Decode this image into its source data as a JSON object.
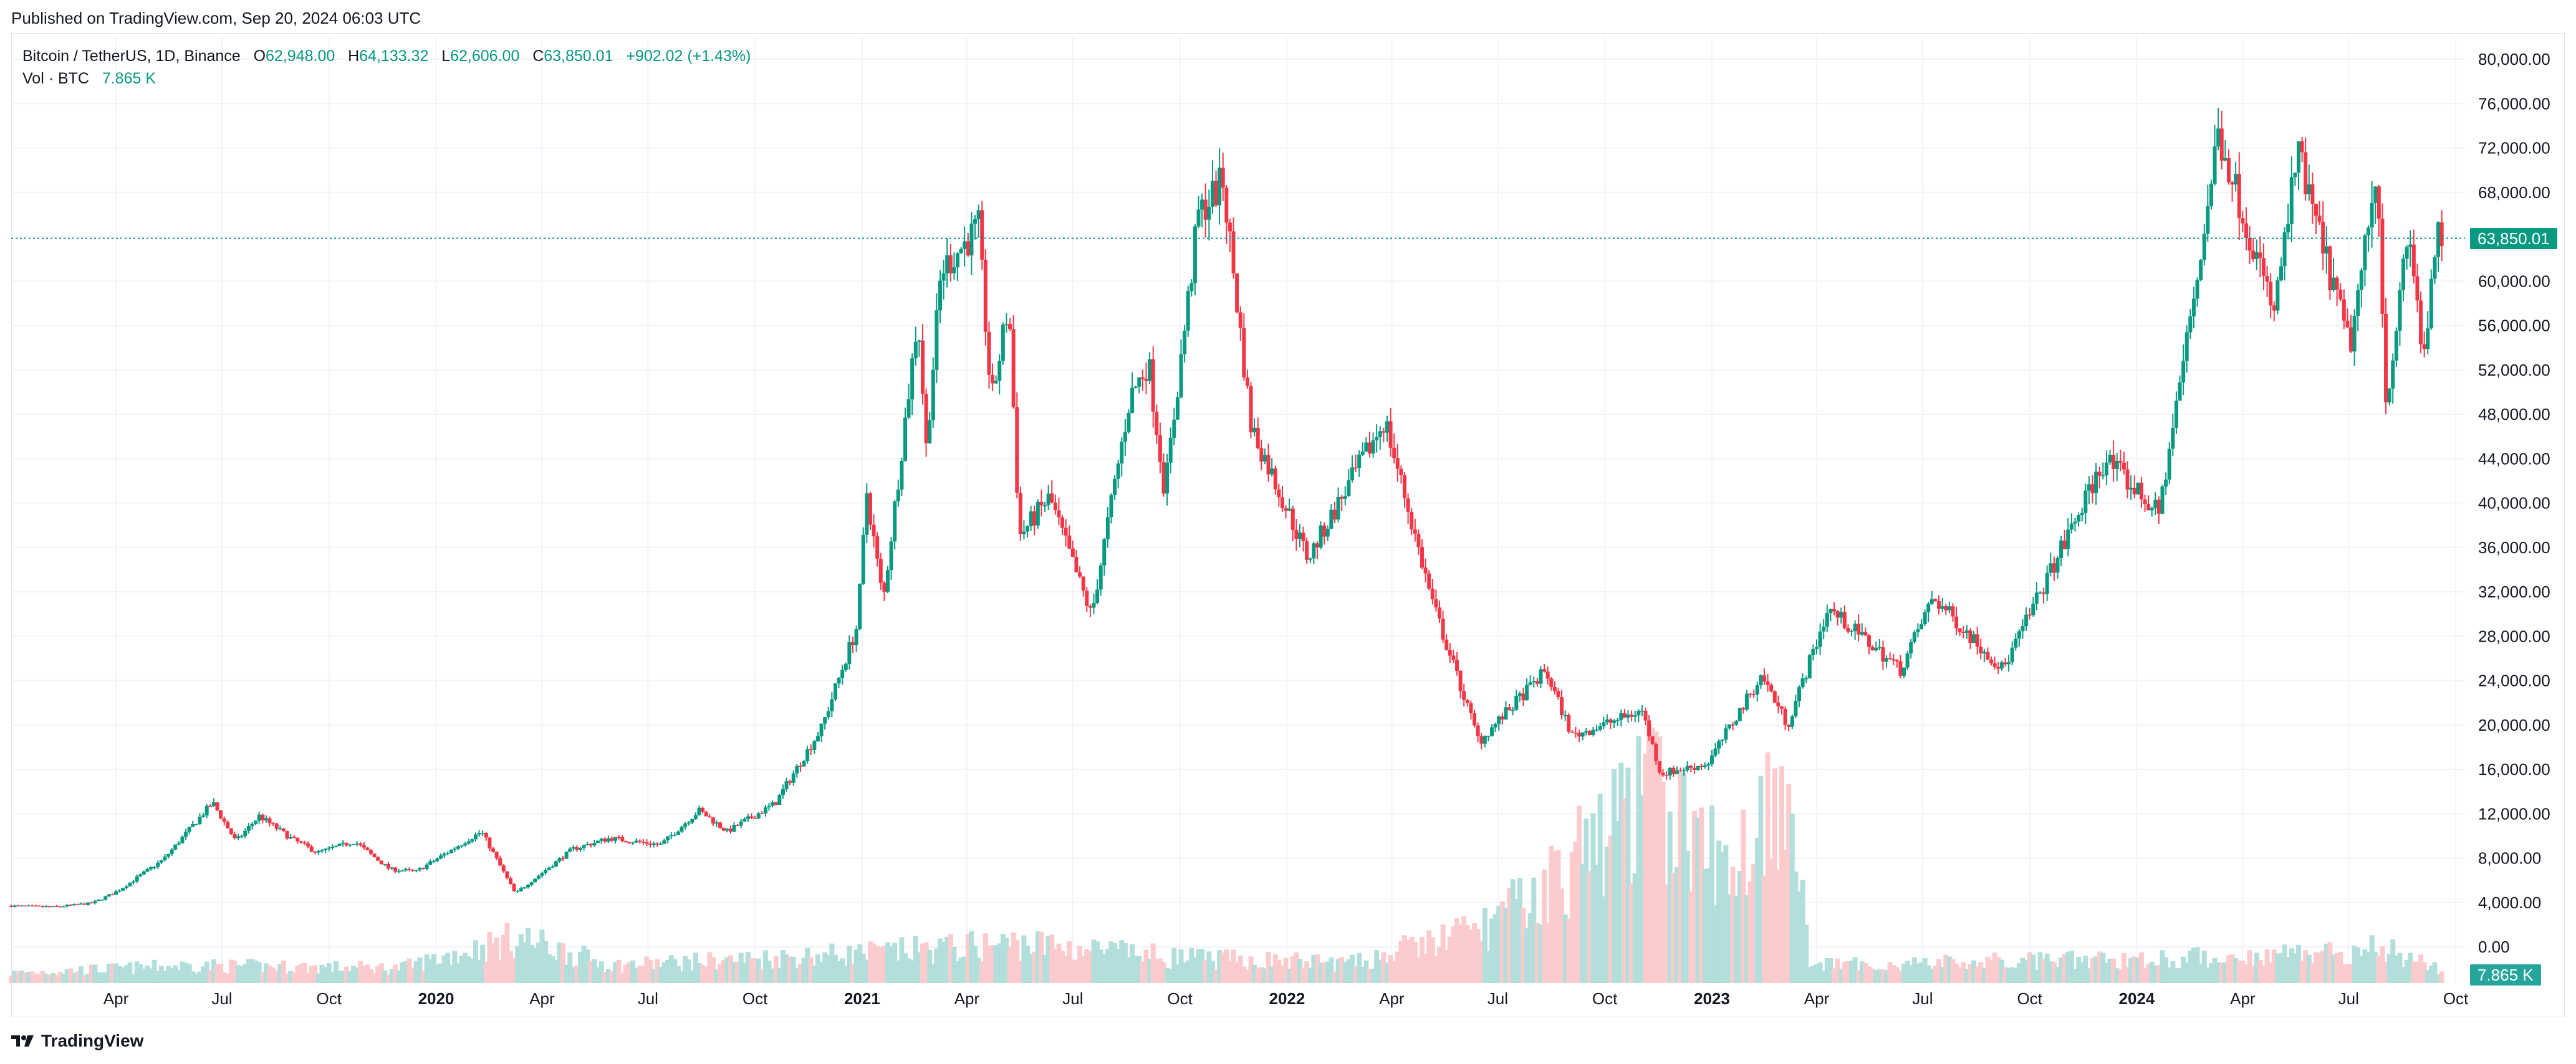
{
  "header": {
    "published": "Published on TradingView.com, Sep 20, 2024 06:03 UTC"
  },
  "legend": {
    "symbol": "Bitcoin / TetherUS, 1D, Binance",
    "open_label": "O",
    "open": "62,948.00",
    "high_label": "H",
    "high": "64,133.32",
    "low_label": "L",
    "low": "62,606.00",
    "close_label": "C",
    "close": "63,850.01",
    "change": "+902.02 (+1.43%)",
    "vol_label": "Vol · BTC",
    "vol_value": "7.865 K"
  },
  "badges": {
    "last_price": "63,850.01",
    "last_volume": "7.865 K"
  },
  "footer": {
    "brand": "TradingView"
  },
  "colors": {
    "up": "#089981",
    "down": "#f23645",
    "vol_up": "#b2dfdb",
    "vol_down": "#fccbcd",
    "grid": "#f0f3fa"
  },
  "chart_data": {
    "type": "candlestick",
    "interval": "1D",
    "exchange": "Binance",
    "y_ticks": [
      "80,000.00",
      "76,000.00",
      "72,000.00",
      "68,000.00",
      "64,000.00",
      "60,000.00",
      "56,000.00",
      "52,000.00",
      "48,000.00",
      "44,000.00",
      "40,000.00",
      "36,000.00",
      "32,000.00",
      "28,000.00",
      "24,000.00",
      "20,000.00",
      "16,000.00",
      "12,000.00",
      "8,000.00",
      "4,000.00",
      "0.00"
    ],
    "ylim": [
      0,
      80000
    ],
    "x_ticks": [
      {
        "label": "Apr",
        "bold": false
      },
      {
        "label": "Jul",
        "bold": false
      },
      {
        "label": "Oct",
        "bold": false
      },
      {
        "label": "2020",
        "bold": true
      },
      {
        "label": "Apr",
        "bold": false
      },
      {
        "label": "Jul",
        "bold": false
      },
      {
        "label": "Oct",
        "bold": false
      },
      {
        "label": "2021",
        "bold": true
      },
      {
        "label": "Apr",
        "bold": false
      },
      {
        "label": "Jul",
        "bold": false
      },
      {
        "label": "Oct",
        "bold": false
      },
      {
        "label": "2022",
        "bold": true
      },
      {
        "label": "Apr",
        "bold": false
      },
      {
        "label": "Jul",
        "bold": false
      },
      {
        "label": "Oct",
        "bold": false
      },
      {
        "label": "2023",
        "bold": true
      },
      {
        "label": "Apr",
        "bold": false
      },
      {
        "label": "Jul",
        "bold": false
      },
      {
        "label": "Oct",
        "bold": false
      },
      {
        "label": "2024",
        "bold": true
      },
      {
        "label": "Apr",
        "bold": false
      },
      {
        "label": "Jul",
        "bold": false
      },
      {
        "label": "Oct",
        "bold": false
      }
    ],
    "price_path": [
      [
        "2019-01-01",
        3700
      ],
      [
        "2019-02-10",
        3600
      ],
      [
        "2019-03-15",
        3950
      ],
      [
        "2019-04-05",
        5000
      ],
      [
        "2019-05-15",
        7900
      ],
      [
        "2019-06-26",
        13000
      ],
      [
        "2019-07-16",
        9500
      ],
      [
        "2019-08-05",
        11800
      ],
      [
        "2019-09-01",
        9800
      ],
      [
        "2019-09-24",
        8500
      ],
      [
        "2019-10-26",
        9500
      ],
      [
        "2019-11-25",
        7000
      ],
      [
        "2019-12-18",
        6800
      ],
      [
        "2020-02-12",
        10400
      ],
      [
        "2020-03-12",
        4800
      ],
      [
        "2020-04-30",
        8800
      ],
      [
        "2020-06-01",
        9800
      ],
      [
        "2020-07-15",
        9200
      ],
      [
        "2020-08-17",
        12300
      ],
      [
        "2020-09-10",
        10400
      ],
      [
        "2020-10-21",
        12900
      ],
      [
        "2020-11-30",
        19700
      ],
      [
        "2020-12-31",
        29000
      ],
      [
        "2021-01-08",
        41000
      ],
      [
        "2021-01-22",
        31000
      ],
      [
        "2021-02-21",
        57000
      ],
      [
        "2021-02-28",
        45000
      ],
      [
        "2021-03-13",
        61000
      ],
      [
        "2021-04-14",
        64800
      ],
      [
        "2021-04-25",
        49000
      ],
      [
        "2021-05-10",
        58000
      ],
      [
        "2021-05-19",
        37000
      ],
      [
        "2021-06-14",
        40500
      ],
      [
        "2021-07-20",
        29800
      ],
      [
        "2021-08-22",
        49500
      ],
      [
        "2021-09-07",
        52700
      ],
      [
        "2021-09-21",
        41000
      ],
      [
        "2021-10-20",
        66000
      ],
      [
        "2021-11-10",
        69000
      ],
      [
        "2021-12-04",
        47000
      ],
      [
        "2022-01-22",
        35000
      ],
      [
        "2022-03-29",
        47500
      ],
      [
        "2022-05-09",
        31000
      ],
      [
        "2022-06-18",
        18500
      ],
      [
        "2022-08-14",
        24900
      ],
      [
        "2022-09-06",
        19000
      ],
      [
        "2022-11-05",
        21300
      ],
      [
        "2022-11-21",
        15600
      ],
      [
        "2022-12-31",
        16500
      ],
      [
        "2023-02-16",
        24500
      ],
      [
        "2023-03-10",
        20000
      ],
      [
        "2023-04-14",
        30500
      ],
      [
        "2023-06-15",
        25000
      ],
      [
        "2023-07-13",
        31500
      ],
      [
        "2023-09-11",
        25000
      ],
      [
        "2023-10-25",
        34500
      ],
      [
        "2023-12-08",
        44000
      ],
      [
        "2024-01-23",
        39000
      ],
      [
        "2024-02-28",
        62500
      ],
      [
        "2024-03-14",
        73500
      ],
      [
        "2024-05-01",
        57000
      ],
      [
        "2024-05-21",
        71500
      ],
      [
        "2024-07-05",
        54000
      ],
      [
        "2024-07-29",
        70000
      ],
      [
        "2024-08-05",
        49000
      ],
      [
        "2024-08-25",
        64500
      ],
      [
        "2024-09-06",
        53000
      ],
      [
        "2024-09-19",
        63850.01
      ]
    ],
    "volume_path": [
      [
        "2019-01-01",
        0.2
      ],
      [
        "2019-06-01",
        0.35
      ],
      [
        "2019-12-01",
        0.3
      ],
      [
        "2020-03-12",
        0.9
      ],
      [
        "2020-06-01",
        0.35
      ],
      [
        "2021-01-10",
        0.6
      ],
      [
        "2021-05-19",
        0.8
      ],
      [
        "2021-10-01",
        0.5
      ],
      [
        "2022-03-01",
        0.4
      ],
      [
        "2022-06-18",
        1.1
      ],
      [
        "2022-08-01",
        1.7
      ],
      [
        "2022-11-09",
        3.8
      ],
      [
        "2023-01-15",
        2.2
      ],
      [
        "2023-03-10",
        4.4
      ],
      [
        "2023-03-25",
        0.35
      ],
      [
        "2024-03-01",
        0.5
      ],
      [
        "2024-08-05",
        0.7
      ],
      [
        "2024-09-19",
        0.25
      ]
    ]
  }
}
